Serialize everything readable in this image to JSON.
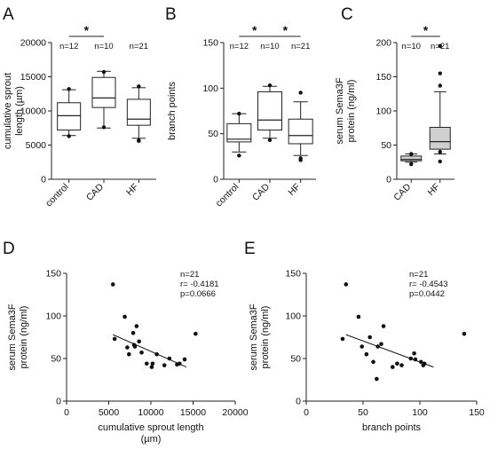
{
  "chart_data": [
    {
      "panel": "A",
      "type": "box",
      "ylabel": "cumulative sprout length (µm)",
      "ylim": [
        0,
        20000
      ],
      "yticks": [
        0,
        5000,
        10000,
        15000,
        20000
      ],
      "categories": [
        "control",
        "CAD",
        "HF"
      ],
      "n_labels": [
        "n=12",
        "n=10",
        "n=21"
      ],
      "boxes": [
        {
          "whisker_low": 6400,
          "q1": 7200,
          "median": 9300,
          "q3": 11200,
          "whisker_high": 13100,
          "outliers": [
            6300,
            13200
          ]
        },
        {
          "whisker_low": 7500,
          "q1": 10500,
          "median": 11900,
          "q3": 14900,
          "whisker_high": 15800,
          "outliers": [
            7600,
            15700
          ]
        },
        {
          "whisker_low": 6000,
          "q1": 7900,
          "median": 8800,
          "q3": 11700,
          "whisker_high": 13400,
          "outliers": [
            5600,
            5700,
            13600
          ]
        }
      ],
      "significance": [
        {
          "from": 0,
          "to": 1,
          "label": "*"
        }
      ]
    },
    {
      "panel": "B",
      "type": "box",
      "ylabel": "branch points",
      "ylim": [
        0,
        150
      ],
      "yticks": [
        0,
        50,
        100,
        150
      ],
      "categories": [
        "control",
        "CAD",
        "HF"
      ],
      "n_labels": [
        "n=12",
        "n=10",
        "n=21"
      ],
      "boxes": [
        {
          "whisker_low": 30,
          "q1": 41,
          "median": 44,
          "q3": 61,
          "whisker_high": 72,
          "outliers": [
            26,
            72
          ]
        },
        {
          "whisker_low": 45,
          "q1": 54,
          "median": 65,
          "q3": 96,
          "whisker_high": 102,
          "outliers": [
            43,
            103
          ]
        },
        {
          "whisker_low": 26,
          "q1": 39,
          "median": 48,
          "q3": 66,
          "whisker_high": 85,
          "outliers": [
            21,
            23,
            95
          ]
        }
      ],
      "significance": [
        {
          "from": 0,
          "to": 1,
          "label": "*"
        },
        {
          "from": 1,
          "to": 2,
          "label": "*"
        }
      ]
    },
    {
      "panel": "C",
      "type": "box",
      "ylabel": "serum Sema3F protein (ng/ml)",
      "ylim": [
        0,
        200
      ],
      "yticks": [
        0,
        50,
        100,
        150,
        200
      ],
      "categories": [
        "CAD",
        "HF"
      ],
      "n_labels": [
        "n=10",
        "n=21"
      ],
      "boxes": [
        {
          "whisker_low": 25,
          "q1": 27,
          "median": 29,
          "q3": 34,
          "whisker_high": 37,
          "outliers": [
            22,
            37
          ]
        },
        {
          "whisker_low": 37,
          "q1": 44,
          "median": 55,
          "q3": 76,
          "whisker_high": 128,
          "outliers": [
            26,
            40,
            137,
            155,
            195
          ]
        }
      ],
      "significance": [
        {
          "from": 0,
          "to": 1,
          "label": "*"
        }
      ]
    },
    {
      "panel": "D",
      "type": "scatter",
      "xlabel": "cumulative sprout length (µm)",
      "ylabel": "serum Sema3F protein (ng/ml)",
      "xlim": [
        0,
        20000
      ],
      "ylim": [
        0,
        150
      ],
      "xticks": [
        0,
        5000,
        10000,
        15000,
        20000
      ],
      "yticks": [
        0,
        50,
        100,
        150
      ],
      "stats": [
        "n=21",
        "r= -0.4181",
        "p=0.0666"
      ],
      "points": [
        [
          5500,
          137
        ],
        [
          5700,
          73
        ],
        [
          6900,
          99
        ],
        [
          7200,
          63
        ],
        [
          7400,
          55
        ],
        [
          7900,
          80
        ],
        [
          8000,
          66
        ],
        [
          8100,
          64
        ],
        [
          8300,
          88
        ],
        [
          8600,
          70
        ],
        [
          8900,
          57
        ],
        [
          9500,
          44
        ],
        [
          10100,
          40
        ],
        [
          10200,
          44
        ],
        [
          10700,
          55
        ],
        [
          11600,
          42
        ],
        [
          12200,
          50
        ],
        [
          13100,
          43
        ],
        [
          13400,
          44
        ],
        [
          14000,
          49
        ],
        [
          15300,
          79
        ]
      ],
      "fit_line": [
        [
          5500,
          78
        ],
        [
          14200,
          40
        ]
      ]
    },
    {
      "panel": "E",
      "type": "scatter",
      "xlabel": "branch points",
      "ylabel": "serum Sema3F protein (ng/ml)",
      "xlim": [
        0,
        150
      ],
      "ylim": [
        0,
        150
      ],
      "xticks": [
        0,
        50,
        100,
        150
      ],
      "yticks": [
        0,
        50,
        100,
        150
      ],
      "stats": [
        "n=21",
        "r= -0.4543",
        "p=0.0442"
      ],
      "points": [
        [
          32,
          73
        ],
        [
          35,
          137
        ],
        [
          46,
          99
        ],
        [
          49,
          64
        ],
        [
          53,
          55
        ],
        [
          56,
          75
        ],
        [
          59,
          46
        ],
        [
          62,
          26
        ],
        [
          63,
          64
        ],
        [
          66,
          67
        ],
        [
          68,
          88
        ],
        [
          76,
          40
        ],
        [
          80,
          44
        ],
        [
          84,
          42
        ],
        [
          92,
          50
        ],
        [
          95,
          56
        ],
        [
          96,
          49
        ],
        [
          101,
          46
        ],
        [
          103,
          42
        ],
        [
          104,
          44
        ],
        [
          139,
          79
        ]
      ],
      "fit_line": [
        [
          35,
          78
        ],
        [
          112,
          40
        ]
      ]
    }
  ]
}
